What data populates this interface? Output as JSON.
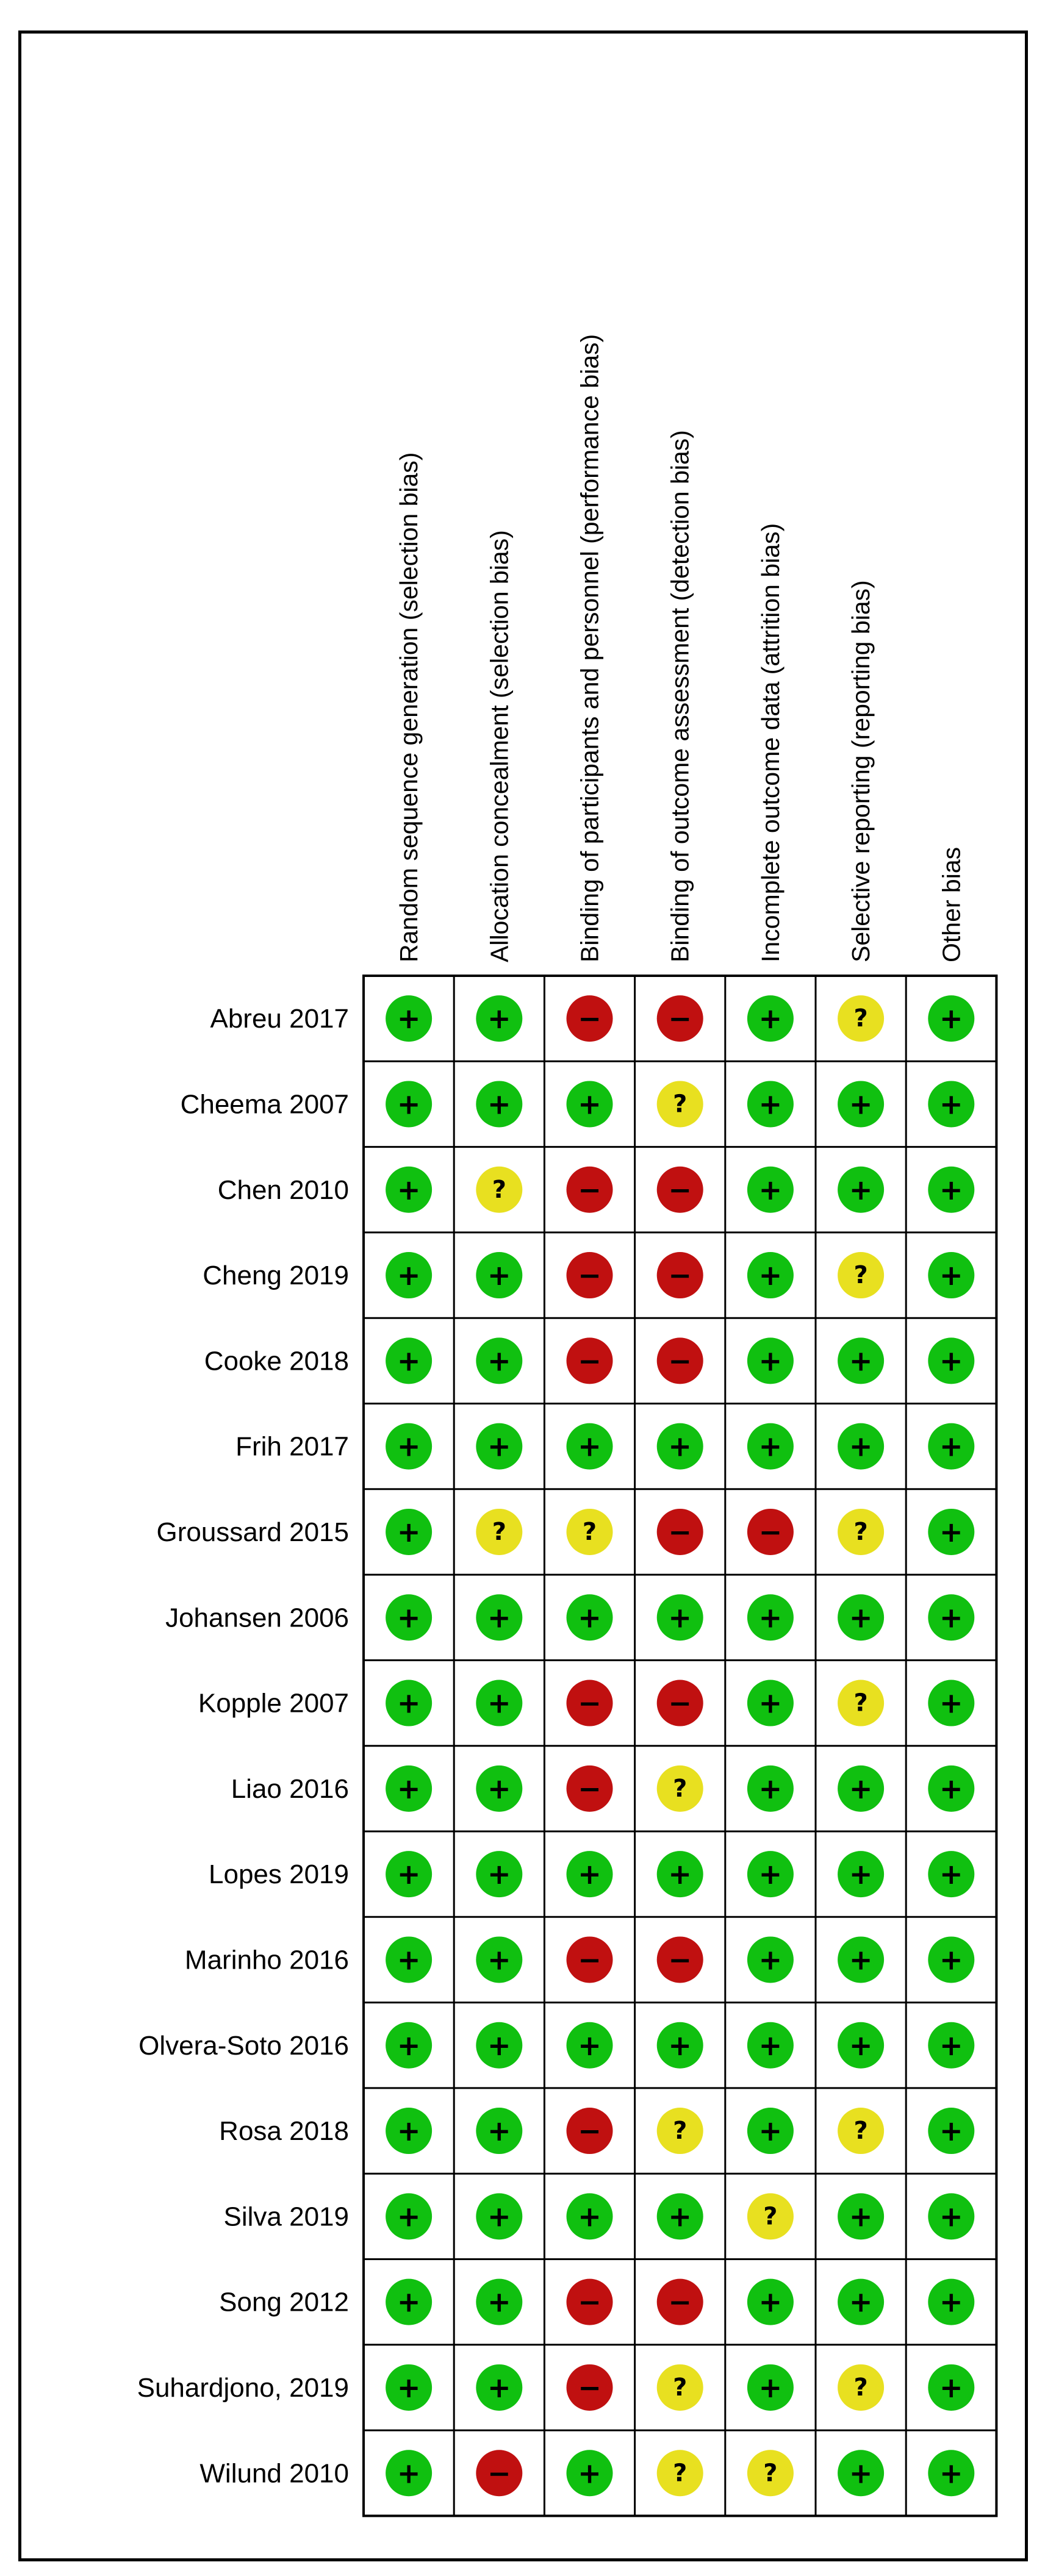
{
  "chart_data": {
    "type": "table",
    "columns": [
      "Random sequence generation (selection bias)",
      "Allocation concealment (selection bias)",
      "Binding of participants and personnel (performance bias)",
      "Binding of outcome assessment (detection bias)",
      "Incomplete outcome data (attrition bias)",
      "Selective reporting (reporting bias)",
      "Other bias"
    ],
    "rows": [
      {
        "study": "Abreu 2017",
        "ratings": [
          "low",
          "low",
          "high",
          "high",
          "low",
          "unclear",
          "low"
        ]
      },
      {
        "study": "Cheema 2007",
        "ratings": [
          "low",
          "low",
          "low",
          "unclear",
          "low",
          "low",
          "low"
        ]
      },
      {
        "study": "Chen 2010",
        "ratings": [
          "low",
          "unclear",
          "high",
          "high",
          "low",
          "low",
          "low"
        ]
      },
      {
        "study": "Cheng 2019",
        "ratings": [
          "low",
          "low",
          "high",
          "high",
          "low",
          "unclear",
          "low"
        ]
      },
      {
        "study": "Cooke 2018",
        "ratings": [
          "low",
          "low",
          "high",
          "high",
          "low",
          "low",
          "low"
        ]
      },
      {
        "study": "Frih 2017",
        "ratings": [
          "low",
          "low",
          "low",
          "low",
          "low",
          "low",
          "low"
        ]
      },
      {
        "study": "Groussard 2015",
        "ratings": [
          "low",
          "unclear",
          "unclear",
          "high",
          "high",
          "unclear",
          "low"
        ]
      },
      {
        "study": "Johansen 2006",
        "ratings": [
          "low",
          "low",
          "low",
          "low",
          "low",
          "low",
          "low"
        ]
      },
      {
        "study": "Kopple 2007",
        "ratings": [
          "low",
          "low",
          "high",
          "high",
          "low",
          "unclear",
          "low"
        ]
      },
      {
        "study": "Liao 2016",
        "ratings": [
          "low",
          "low",
          "high",
          "unclear",
          "low",
          "low",
          "low"
        ]
      },
      {
        "study": "Lopes 2019",
        "ratings": [
          "low",
          "low",
          "low",
          "low",
          "low",
          "low",
          "low"
        ]
      },
      {
        "study": "Marinho 2016",
        "ratings": [
          "low",
          "low",
          "high",
          "high",
          "low",
          "low",
          "low"
        ]
      },
      {
        "study": "Olvera-Soto 2016",
        "ratings": [
          "low",
          "low",
          "low",
          "low",
          "low",
          "low",
          "low"
        ]
      },
      {
        "study": "Rosa 2018",
        "ratings": [
          "low",
          "low",
          "high",
          "unclear",
          "low",
          "unclear",
          "low"
        ]
      },
      {
        "study": "Silva 2019",
        "ratings": [
          "low",
          "low",
          "low",
          "low",
          "unclear",
          "low",
          "low"
        ]
      },
      {
        "study": "Song 2012",
        "ratings": [
          "low",
          "low",
          "high",
          "high",
          "low",
          "low",
          "low"
        ]
      },
      {
        "study": "Suhardjono, 2019",
        "ratings": [
          "low",
          "low",
          "high",
          "unclear",
          "low",
          "unclear",
          "low"
        ]
      },
      {
        "study": "Wilund 2010",
        "ratings": [
          "low",
          "high",
          "low",
          "unclear",
          "unclear",
          "low",
          "low"
        ]
      }
    ],
    "symbols": {
      "low": "+",
      "unclear": "?",
      "high": "−"
    },
    "colors": {
      "low": "#10c010",
      "unclear": "#e8e020",
      "high": "#c01010",
      "grid": "#000000"
    }
  }
}
